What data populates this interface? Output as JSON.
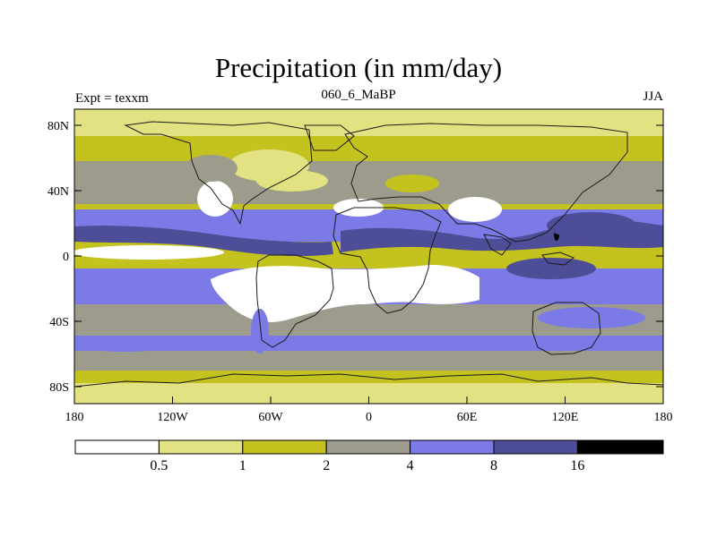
{
  "title": "Precipitation (in mm/day)",
  "subtitle_left": "Expt = texxm",
  "subtitle_center": "060_6_MaBP",
  "subtitle_right": "JJA",
  "y_ticks": [
    "80N",
    "40N",
    "0",
    "40S",
    "80S"
  ],
  "x_ticks": [
    "180",
    "120W",
    "60W",
    "0",
    "60E",
    "120E",
    "180"
  ],
  "colors": {
    "c0": "#ffffff",
    "c1": "#e3e283",
    "c2": "#c4c21f",
    "c3": "#9d9c8c",
    "c4": "#7c7ae6",
    "c5": "#4e4d97",
    "c6": "#000000",
    "coast": "#1a1a1a"
  },
  "colorbar": {
    "labels": [
      "0.5",
      "1",
      "2",
      "4",
      "8",
      "16"
    ],
    "bins": [
      {
        "color": "#ffffff"
      },
      {
        "color": "#e3e283"
      },
      {
        "color": "#c4c21f"
      },
      {
        "color": "#9d9c8c"
      },
      {
        "color": "#7c7ae6"
      },
      {
        "color": "#4e4d97"
      },
      {
        "color": "#000000"
      }
    ]
  }
}
